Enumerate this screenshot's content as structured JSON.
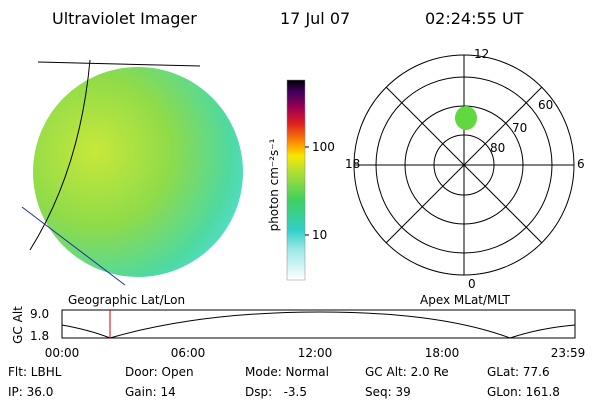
{
  "header": {
    "instrument": "Ultraviolet Imager",
    "date": "17 Jul 07",
    "time": "02:24:55 UT"
  },
  "colorbar": {
    "label": "photon cm⁻²s⁻¹",
    "ticks": [
      "100",
      "10"
    ]
  },
  "polar_plot": {
    "mlt_labels": [
      "12",
      "18",
      "6",
      "0"
    ],
    "mlat_labels": [
      "60",
      "70",
      "80"
    ]
  },
  "captions": {
    "left": "Geographic Lat/Lon",
    "right": "Apex MLat/MLT"
  },
  "altitude_plot": {
    "ylabel": "GC Alt",
    "yticks": [
      "9.0",
      "1.8"
    ],
    "xticks": [
      "00:00",
      "06:00",
      "12:00",
      "18:00",
      "23:59"
    ]
  },
  "footer": {
    "rows": [
      [
        "Flt: LBHL",
        "Door: Open",
        "Mode: Normal",
        "GC Alt: 2.0 Re",
        "GLat: 77.6"
      ],
      [
        "IP: 36.0",
        "Gain: 14",
        "Dsp:   -3.5",
        "Seq: 39",
        "GLon: 161.8"
      ]
    ]
  }
}
